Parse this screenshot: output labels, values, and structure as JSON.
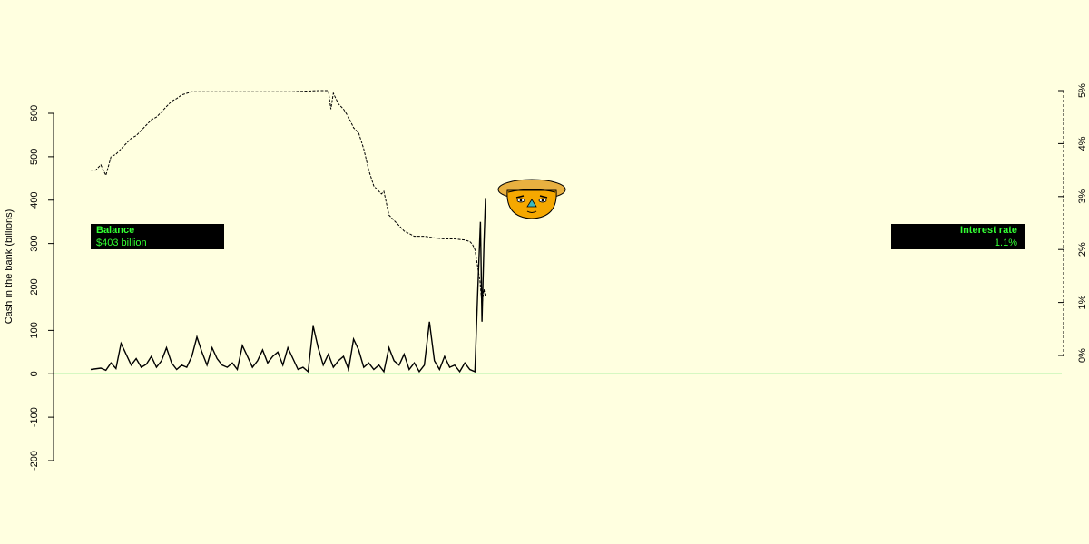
{
  "chart_data": {
    "type": "line",
    "ylabel": "Cash in the bank (billions)",
    "ylim": [
      -200,
      600
    ],
    "yticks": [
      "-200",
      "-100",
      "0",
      "100",
      "200",
      "300",
      "400",
      "500",
      "600"
    ],
    "y2lim": [
      0,
      5
    ],
    "y2ticks": [
      "0%",
      "1%",
      "2%",
      "3%",
      "4%",
      "5%"
    ],
    "zero_line_color": "#90ee90",
    "series": [
      {
        "axis": "left",
        "style": "solid",
        "points": [
          [
            0,
            10
          ],
          [
            2,
            13
          ],
          [
            3,
            8
          ],
          [
            4,
            25
          ],
          [
            5,
            12
          ],
          [
            6,
            70
          ],
          [
            7,
            45
          ],
          [
            8,
            20
          ],
          [
            9,
            35
          ],
          [
            10,
            15
          ],
          [
            11,
            22
          ],
          [
            12,
            40
          ],
          [
            13,
            15
          ],
          [
            14,
            30
          ],
          [
            15,
            60
          ],
          [
            16,
            25
          ],
          [
            17,
            10
          ],
          [
            18,
            20
          ],
          [
            19,
            15
          ],
          [
            20,
            40
          ],
          [
            21,
            85
          ],
          [
            22,
            50
          ],
          [
            23,
            20
          ],
          [
            24,
            60
          ],
          [
            25,
            35
          ],
          [
            26,
            20
          ],
          [
            27,
            15
          ],
          [
            28,
            25
          ],
          [
            29,
            10
          ],
          [
            30,
            65
          ],
          [
            31,
            40
          ],
          [
            32,
            15
          ],
          [
            33,
            30
          ],
          [
            34,
            55
          ],
          [
            35,
            25
          ],
          [
            36,
            40
          ],
          [
            37,
            50
          ],
          [
            38,
            20
          ],
          [
            39,
            60
          ],
          [
            40,
            35
          ],
          [
            41,
            10
          ],
          [
            42,
            15
          ],
          [
            43,
            5
          ],
          [
            44,
            110
          ],
          [
            45,
            60
          ],
          [
            46,
            20
          ],
          [
            47,
            45
          ],
          [
            48,
            15
          ],
          [
            49,
            30
          ],
          [
            50,
            40
          ],
          [
            51,
            10
          ],
          [
            52,
            80
          ],
          [
            53,
            55
          ],
          [
            54,
            15
          ],
          [
            55,
            25
          ],
          [
            56,
            10
          ],
          [
            57,
            20
          ],
          [
            58,
            5
          ],
          [
            59,
            60
          ],
          [
            60,
            30
          ],
          [
            61,
            20
          ],
          [
            62,
            45
          ],
          [
            63,
            10
          ],
          [
            64,
            25
          ],
          [
            65,
            5
          ],
          [
            66,
            20
          ],
          [
            67,
            120
          ],
          [
            68,
            30
          ],
          [
            69,
            10
          ],
          [
            70,
            40
          ],
          [
            71,
            15
          ],
          [
            72,
            20
          ],
          [
            73,
            5
          ],
          [
            74,
            25
          ],
          [
            75,
            10
          ],
          [
            76,
            5
          ],
          [
            76.6,
            200
          ],
          [
            77.1,
            350
          ],
          [
            77.4,
            120
          ],
          [
            77.8,
            300
          ],
          [
            78.1,
            405
          ]
        ]
      },
      {
        "axis": "right",
        "style": "dashed",
        "points": [
          [
            0,
            3.5
          ],
          [
            1,
            3.5
          ],
          [
            2,
            3.6
          ],
          [
            3,
            3.4
          ],
          [
            4,
            3.75
          ],
          [
            5,
            3.8
          ],
          [
            6,
            3.9
          ],
          [
            7,
            4.0
          ],
          [
            8,
            4.1
          ],
          [
            9,
            4.15
          ],
          [
            10,
            4.25
          ],
          [
            11,
            4.35
          ],
          [
            12,
            4.45
          ],
          [
            13,
            4.5
          ],
          [
            14,
            4.6
          ],
          [
            15,
            4.7
          ],
          [
            16,
            4.8
          ],
          [
            17,
            4.85
          ],
          [
            18,
            4.92
          ],
          [
            20,
            4.98
          ],
          [
            30,
            4.98
          ],
          [
            40,
            4.98
          ],
          [
            45,
            5.0
          ],
          [
            47,
            5.0
          ],
          [
            47.5,
            4.65
          ],
          [
            48,
            4.95
          ],
          [
            49,
            4.75
          ],
          [
            50,
            4.65
          ],
          [
            51,
            4.5
          ],
          [
            52,
            4.3
          ],
          [
            53,
            4.2
          ],
          [
            54,
            3.9
          ],
          [
            55,
            3.5
          ],
          [
            56,
            3.2
          ],
          [
            57,
            3.1
          ],
          [
            57.5,
            3.05
          ],
          [
            58,
            3.1
          ],
          [
            59,
            2.65
          ],
          [
            60,
            2.55
          ],
          [
            61,
            2.45
          ],
          [
            62,
            2.35
          ],
          [
            64,
            2.25
          ],
          [
            66,
            2.25
          ],
          [
            68,
            2.22
          ],
          [
            70,
            2.2
          ],
          [
            72,
            2.2
          ],
          [
            74,
            2.18
          ],
          [
            75,
            2.15
          ],
          [
            75.5,
            2.1
          ],
          [
            76,
            2.0
          ],
          [
            76.5,
            1.7
          ],
          [
            77,
            1.4
          ],
          [
            77.4,
            0.95
          ],
          [
            77.8,
            1.25
          ],
          [
            78.1,
            1.1
          ]
        ]
      }
    ],
    "x_span": [
      0,
      78.1
    ]
  },
  "balance_box": {
    "title": "Balance",
    "value": "$403 billion"
  },
  "rate_box": {
    "title": "Interest rate",
    "value": "1.1%"
  },
  "mascot": {
    "icon": "face-with-hat-icon"
  }
}
